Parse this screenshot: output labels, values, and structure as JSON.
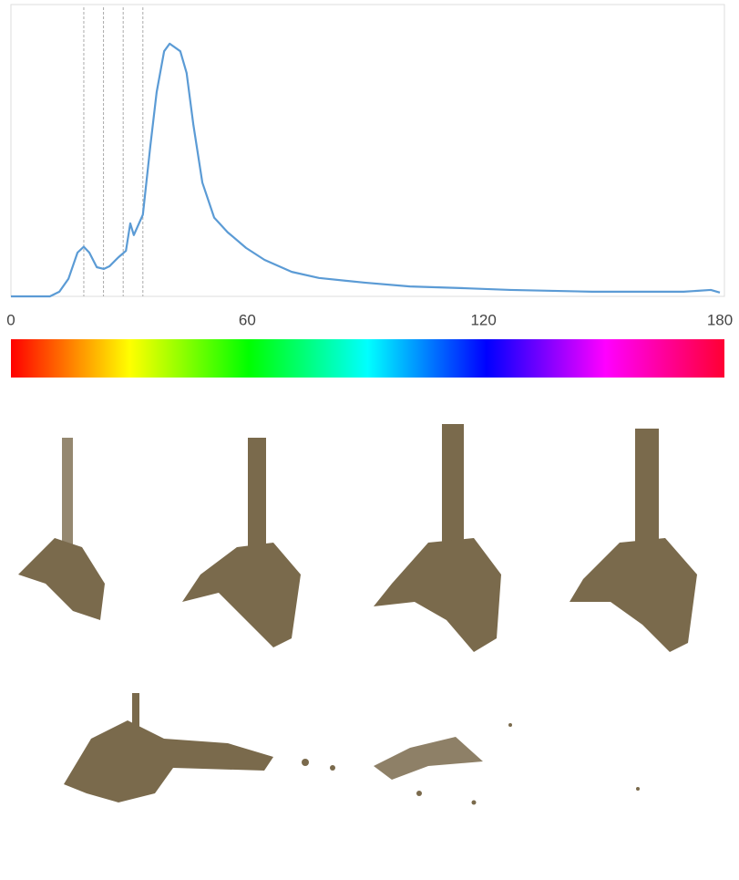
{
  "chart_data": {
    "type": "line",
    "x": [
      0,
      9.9,
      12.3,
      14.6,
      16.9,
      18.5,
      19.9,
      21.8,
      23.6,
      25,
      27.3,
      29.2,
      30.3,
      31.2,
      33.5,
      35.4,
      37,
      38.9,
      40.3,
      43,
      44.6,
      46.3,
      48.6,
      51.6,
      55,
      59.7,
      64.4,
      71.3,
      78.2,
      89.8,
      101.3,
      115.2,
      126.8,
      147.6,
      170.8,
      177.7,
      180
    ],
    "values": [
      0,
      0,
      1.6,
      6,
      15,
      17,
      15,
      10,
      9.4,
      10.3,
      13.4,
      15.6,
      25,
      21,
      28,
      51.6,
      70,
      84,
      86.6,
      84,
      76.6,
      59,
      39,
      27,
      22,
      16.6,
      12.5,
      8.4,
      6.3,
      4.7,
      3.4,
      2.8,
      2.2,
      1.6,
      1.6,
      2.2,
      1.3
    ],
    "color": "#5b9bd5",
    "xlim": [
      0,
      180
    ],
    "xticks": [
      0,
      60,
      120,
      180
    ],
    "ylim": [
      0,
      100
    ],
    "vlines": [
      18.5,
      23.5,
      28.5,
      33.5
    ]
  }
}
